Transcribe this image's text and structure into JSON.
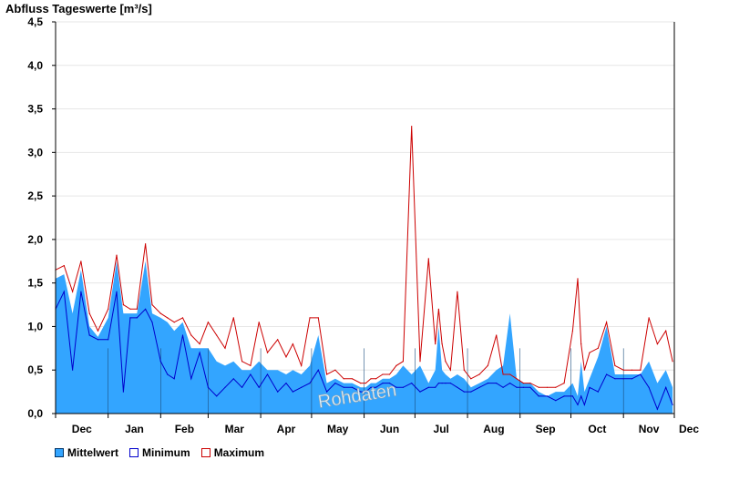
{
  "chart_data": {
    "type": "area",
    "title": "Abfluss Tageswerte [m³/s]",
    "ylim": [
      0,
      4.5
    ],
    "yticks": [
      "0,0",
      "0,5",
      "1,0",
      "1,5",
      "2,0",
      "2,5",
      "3,0",
      "3,5",
      "4,0",
      "4,5"
    ],
    "yticks_values": [
      0,
      0.5,
      1.0,
      1.5,
      2.0,
      2.5,
      3.0,
      3.5,
      4.0,
      4.5
    ],
    "months": [
      "Dec",
      "Jan",
      "Feb",
      "Mar",
      "Apr",
      "May",
      "Jun",
      "Jul",
      "Aug",
      "Sep",
      "Oct",
      "Nov",
      "Dec"
    ],
    "grid": true,
    "legend_position": "bottom-left",
    "watermark": "Rohdaten",
    "colors": {
      "mittel": "#33a5ff",
      "minimum": "#0000cc",
      "maximum": "#cc0000"
    },
    "x_day_of_period": [
      0,
      5,
      10,
      15,
      20,
      25,
      31,
      36,
      40,
      44,
      48,
      53,
      57,
      62,
      66,
      70,
      75,
      80,
      85,
      90,
      95,
      100,
      105,
      110,
      115,
      120,
      125,
      131,
      136,
      140,
      145,
      150,
      155,
      160,
      165,
      170,
      175,
      180,
      183,
      186,
      189,
      193,
      197,
      201,
      205,
      210,
      215,
      220,
      224,
      226,
      228,
      230,
      233,
      237,
      241,
      245,
      250,
      255,
      260,
      264,
      268,
      272,
      276,
      280,
      285,
      290,
      295,
      300,
      305,
      308,
      310,
      312,
      315,
      320,
      325,
      330,
      335,
      340,
      345,
      350,
      355,
      360,
      364
    ],
    "series": [
      {
        "name": "Mittelwert",
        "values": [
          1.55,
          1.6,
          1.15,
          1.65,
          1.0,
          0.88,
          1.1,
          1.75,
          1.15,
          1.15,
          1.15,
          1.75,
          1.15,
          1.1,
          1.05,
          0.95,
          1.05,
          0.75,
          0.75,
          0.75,
          0.6,
          0.55,
          0.6,
          0.5,
          0.5,
          0.6,
          0.5,
          0.5,
          0.45,
          0.5,
          0.45,
          0.55,
          0.9,
          0.35,
          0.4,
          0.35,
          0.35,
          0.3,
          0.3,
          0.35,
          0.35,
          0.4,
          0.4,
          0.45,
          0.55,
          0.45,
          0.55,
          0.35,
          0.5,
          1.0,
          0.5,
          0.45,
          0.4,
          0.45,
          0.4,
          0.3,
          0.35,
          0.4,
          0.5,
          0.55,
          1.15,
          0.4,
          0.35,
          0.35,
          0.25,
          0.2,
          0.25,
          0.25,
          0.35,
          0.2,
          0.6,
          0.25,
          0.4,
          0.65,
          1.0,
          0.45,
          0.45,
          0.45,
          0.45,
          0.6,
          0.35,
          0.5,
          0.3
        ]
      },
      {
        "name": "Minimum",
        "values": [
          1.2,
          1.4,
          0.5,
          1.4,
          0.9,
          0.85,
          0.85,
          1.4,
          0.25,
          1.1,
          1.1,
          1.2,
          1.05,
          0.6,
          0.45,
          0.4,
          0.9,
          0.4,
          0.7,
          0.3,
          0.2,
          0.3,
          0.4,
          0.3,
          0.45,
          0.3,
          0.45,
          0.25,
          0.35,
          0.25,
          0.3,
          0.35,
          0.5,
          0.25,
          0.35,
          0.3,
          0.3,
          0.25,
          0.25,
          0.3,
          0.3,
          0.35,
          0.35,
          0.3,
          0.3,
          0.35,
          0.25,
          0.3,
          0.3,
          0.35,
          0.35,
          0.35,
          0.35,
          0.3,
          0.25,
          0.25,
          0.3,
          0.35,
          0.35,
          0.3,
          0.35,
          0.3,
          0.3,
          0.3,
          0.2,
          0.2,
          0.15,
          0.2,
          0.2,
          0.1,
          0.2,
          0.1,
          0.3,
          0.25,
          0.45,
          0.4,
          0.4,
          0.4,
          0.45,
          0.3,
          0.05,
          0.3,
          0.1
        ]
      },
      {
        "name": "Maximum",
        "values": [
          1.65,
          1.7,
          1.4,
          1.75,
          1.15,
          0.95,
          1.2,
          1.82,
          1.25,
          1.2,
          1.2,
          1.95,
          1.25,
          1.15,
          1.1,
          1.05,
          1.1,
          0.9,
          0.8,
          1.05,
          0.9,
          0.75,
          1.1,
          0.6,
          0.55,
          1.05,
          0.7,
          0.85,
          0.65,
          0.8,
          0.55,
          1.1,
          1.1,
          0.45,
          0.5,
          0.4,
          0.4,
          0.35,
          0.35,
          0.4,
          0.4,
          0.45,
          0.45,
          0.55,
          0.6,
          3.3,
          0.6,
          1.78,
          0.8,
          1.2,
          0.8,
          0.6,
          0.5,
          1.4,
          0.5,
          0.4,
          0.45,
          0.55,
          0.9,
          0.45,
          0.45,
          0.4,
          0.35,
          0.35,
          0.3,
          0.3,
          0.3,
          0.35,
          0.95,
          1.55,
          0.8,
          0.5,
          0.7,
          0.75,
          1.05,
          0.55,
          0.5,
          0.5,
          0.5,
          1.1,
          0.8,
          0.95,
          0.6
        ]
      }
    ]
  }
}
